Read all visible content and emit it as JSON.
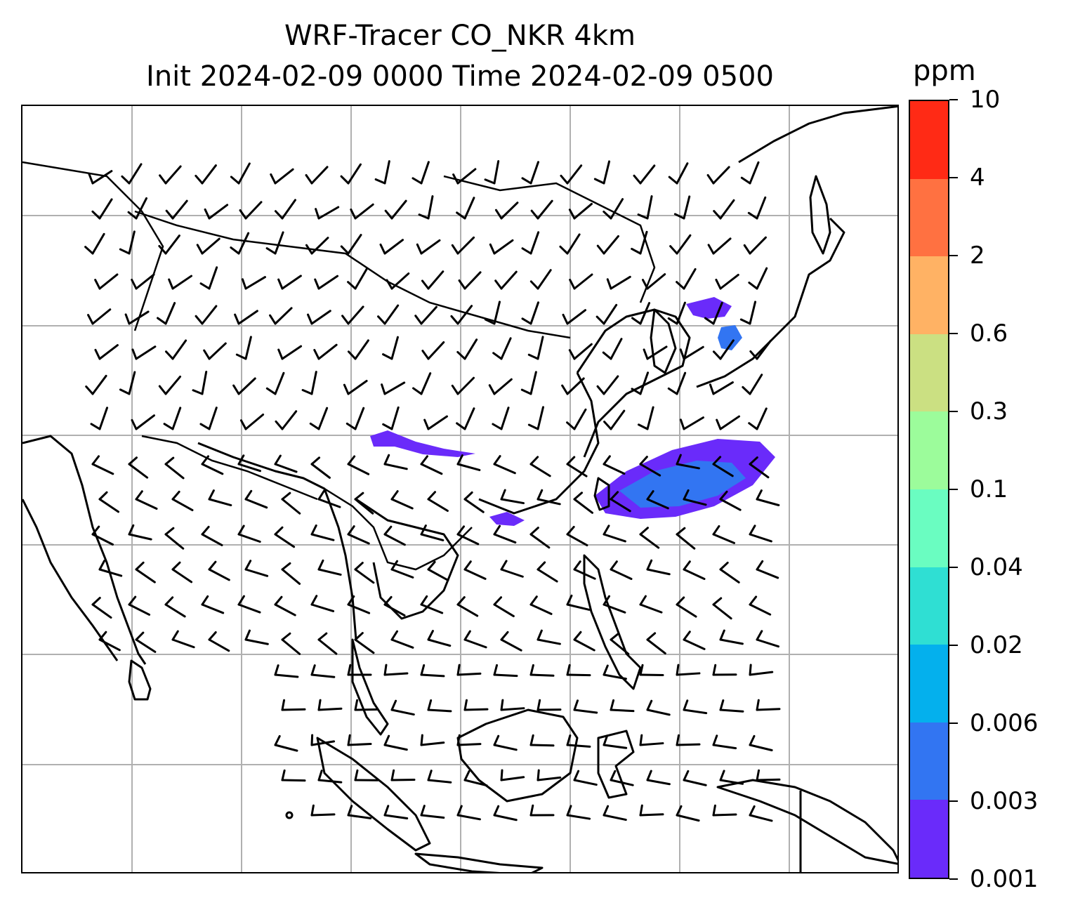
{
  "title_line1": "WRF-Tracer CO_NKR 4km",
  "title_line2": "Init 2024-02-09 0000 Time 2024-02-09 0500",
  "colorbar": {
    "unit": "ppm",
    "levels": [
      "0.001",
      "0.003",
      "0.006",
      "0.02",
      "0.04",
      "0.1",
      "0.3",
      "0.6",
      "2",
      "4",
      "10"
    ],
    "colors": [
      "#6a2bfa",
      "#3275f2",
      "#04b0ed",
      "#2fdfd3",
      "#6afdc1",
      "#9cfc9b",
      "#cbe082",
      "#ffb264",
      "#ff7141",
      "#ff2a15"
    ]
  },
  "map": {
    "projection_gridlines": true,
    "features": [
      "coastlines",
      "country-borders",
      "wind-barbs",
      "tracer-concentration"
    ]
  }
}
